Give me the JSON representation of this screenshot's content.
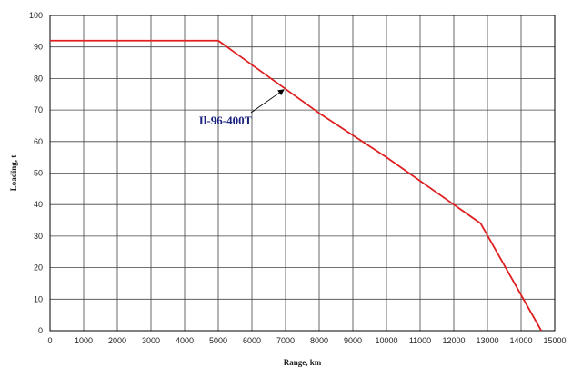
{
  "chart_data": {
    "type": "line",
    "title": "",
    "xlabel": "Range, km",
    "ylabel": "Loading, t",
    "xlim": [
      0,
      15000
    ],
    "ylim": [
      0,
      100
    ],
    "x_ticks": [
      "0",
      "1000",
      "2000",
      "3000",
      "4000",
      "5000",
      "6000",
      "7000",
      "8000",
      "9000",
      "10000",
      "11000",
      "12000",
      "13000",
      "14000",
      "15000"
    ],
    "y_ticks": [
      "0",
      "10",
      "20",
      "30",
      "40",
      "50",
      "60",
      "70",
      "80",
      "90",
      "100"
    ],
    "grid": true,
    "series": [
      {
        "name": "",
        "color": "#e02020",
        "x": [
          0,
          5000,
          8000,
          10000,
          12000,
          12800,
          14600
        ],
        "y": [
          92,
          92,
          69,
          55,
          40,
          34,
          0
        ]
      }
    ],
    "annotations": [
      {
        "text": "Il-96-400T",
        "arrow_to": {
          "x": 7000,
          "y": 77
        }
      }
    ]
  }
}
